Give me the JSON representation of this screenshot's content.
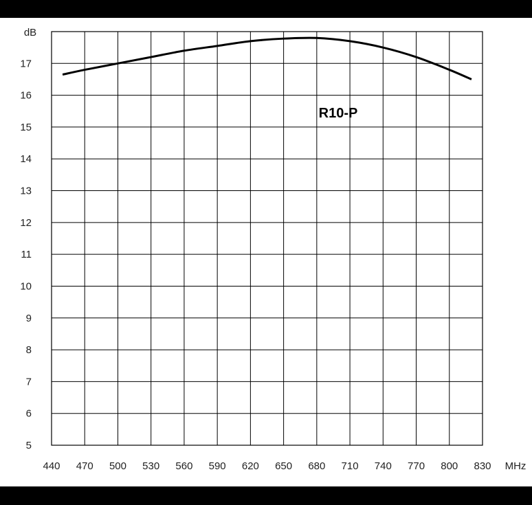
{
  "chart_data": {
    "type": "line",
    "title": "",
    "xlabel": "",
    "ylabel": "",
    "x_unit": "MHz",
    "y_unit": "dB",
    "x_ticks": [
      440,
      470,
      500,
      530,
      560,
      590,
      620,
      650,
      680,
      710,
      740,
      770,
      800,
      830
    ],
    "y_ticks": [
      5,
      6,
      7,
      8,
      9,
      10,
      11,
      12,
      13,
      14,
      15,
      16,
      17
    ],
    "y_top_label": "dB",
    "xlim": [
      440,
      830
    ],
    "ylim": [
      5,
      18
    ],
    "grid": true,
    "annotation": "R10-P",
    "series": [
      {
        "x": [
          450,
          470,
          500,
          530,
          560,
          590,
          620,
          650,
          680,
          710,
          740,
          770,
          800,
          820
        ],
        "y": [
          16.65,
          16.8,
          17.0,
          17.2,
          17.4,
          17.55,
          17.7,
          17.78,
          17.8,
          17.7,
          17.5,
          17.2,
          16.8,
          16.5
        ]
      }
    ],
    "colors": {
      "line": "#000000",
      "grid": "#000000",
      "background": "#ffffff",
      "frame": "#000000"
    }
  }
}
